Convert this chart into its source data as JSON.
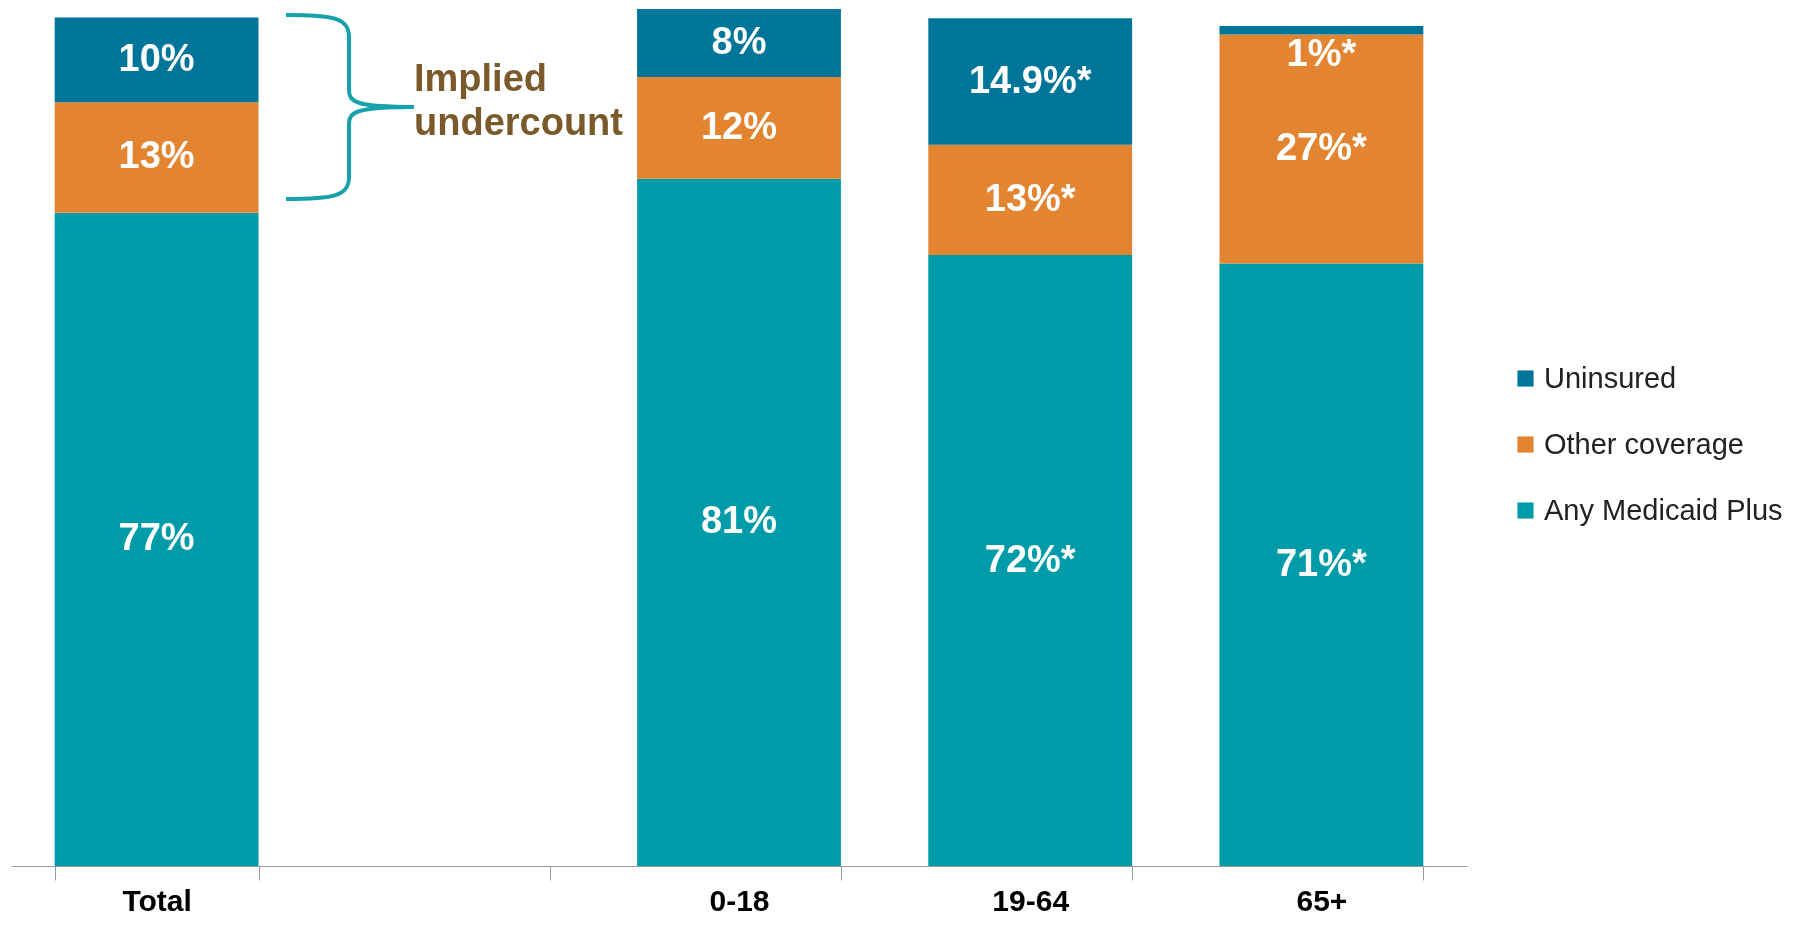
{
  "chart_data": {
    "type": "bar",
    "stacked": true,
    "categories": [
      "Total",
      null,
      "0-18",
      "19-64",
      "65+"
    ],
    "series": [
      {
        "name": "Any Medicaid Plus",
        "color": "#009ba9",
        "values": [
          77,
          null,
          81,
          72,
          71
        ],
        "value_labels": [
          "77%",
          null,
          "81%",
          "72%*",
          "71%*"
        ]
      },
      {
        "name": "Other coverage",
        "color": "#e38430",
        "values": [
          13,
          null,
          12,
          13,
          27
        ],
        "value_labels": [
          "13%",
          null,
          "12%",
          "13%*",
          "27%*"
        ]
      },
      {
        "name": "Uninsured",
        "color": "#00759a",
        "values": [
          10,
          null,
          8,
          14.9,
          1
        ],
        "value_labels": [
          "10%",
          null,
          "8%",
          "14.9%*",
          "1%*"
        ]
      }
    ],
    "ylim": [
      0,
      101
    ],
    "tick_labels": "x",
    "grid": false,
    "legend": "right",
    "annotations": [
      "Implied undercount"
    ]
  }
}
